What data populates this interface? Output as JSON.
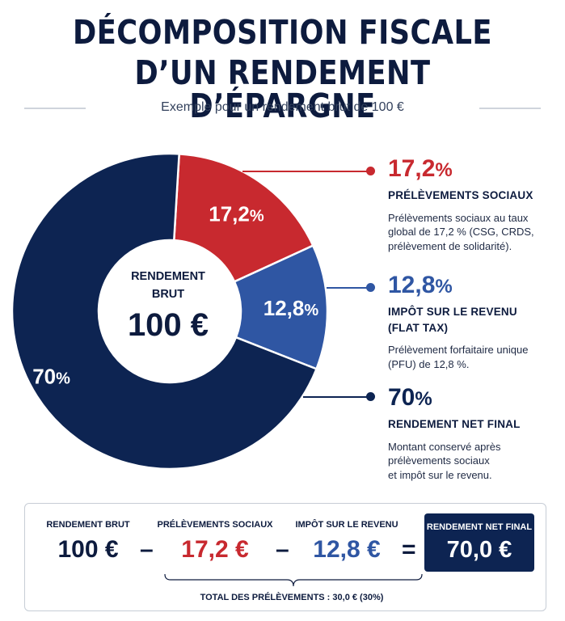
{
  "header": {
    "title_line1": "DÉCOMPOSITION FISCALE",
    "title_line2": "D’UN RENDEMENT D’ÉPARGNE",
    "subtitle": "Exemple pour un rendement brut de 100 €"
  },
  "chart_data": {
    "type": "pie",
    "title": "DÉCOMPOSITION FISCALE D’UN RENDEMENT D’ÉPARGNE",
    "center_label": [
      "RENDEMENT",
      "BRUT"
    ],
    "center_value": "100 €",
    "slices": [
      {
        "name": "PRÉLÈVEMENTS SOCIAUX",
        "value": 17.2,
        "label": "17,2",
        "color": "#c8292f"
      },
      {
        "name": "IMPÔT SUR LE REVENU (FLAT TAX)",
        "value": 12.8,
        "label": "12,8",
        "color": "#2f56a3"
      },
      {
        "name": "RENDEMENT NET FINAL",
        "value": 70,
        "label": "70",
        "color": "#0d2452"
      }
    ]
  },
  "legend": [
    {
      "pct": "17,2",
      "pct_sign": "%",
      "color": "#c8292f",
      "title_lines": [
        "PRÉLÈVEMENTS SOCIAUX"
      ],
      "desc_lines": [
        "Prélèvements sociaux au taux",
        "global de 17,2 % (CSG, CRDS,",
        "prélèvement de solidarité)."
      ]
    },
    {
      "pct": "12,8",
      "pct_sign": "%",
      "color": "#2f56a3",
      "title_lines": [
        "IMPÔT SUR LE REVENU",
        "(FLAT TAX)"
      ],
      "desc_lines": [
        "Prélèvement forfaitaire unique",
        "(PFU) de 12,8 %."
      ]
    },
    {
      "pct": "70",
      "pct_sign": "%",
      "color": "#0d2452",
      "title_lines": [
        "RENDEMENT NET FINAL"
      ],
      "desc_lines": [
        "Montant conservé après",
        "prélèvements sociaux",
        "et impôt sur le revenu."
      ]
    }
  ],
  "summary": {
    "brut_label": "RENDEMENT BRUT",
    "brut_value": "100 €",
    "ps_label": "PRÉLÈVEMENTS SOCIAUX",
    "ps_value": "17,2 €",
    "ir_label": "IMPÔT SUR LE REVENU",
    "ir_value": "12,8 €",
    "net_label": "RENDEMENT NET FINAL",
    "net_value": "70,0 €",
    "minus": "–",
    "equals": "=",
    "total": "TOTAL DES PRÉLÈVEMENTS : 30,0 € (30%)"
  }
}
